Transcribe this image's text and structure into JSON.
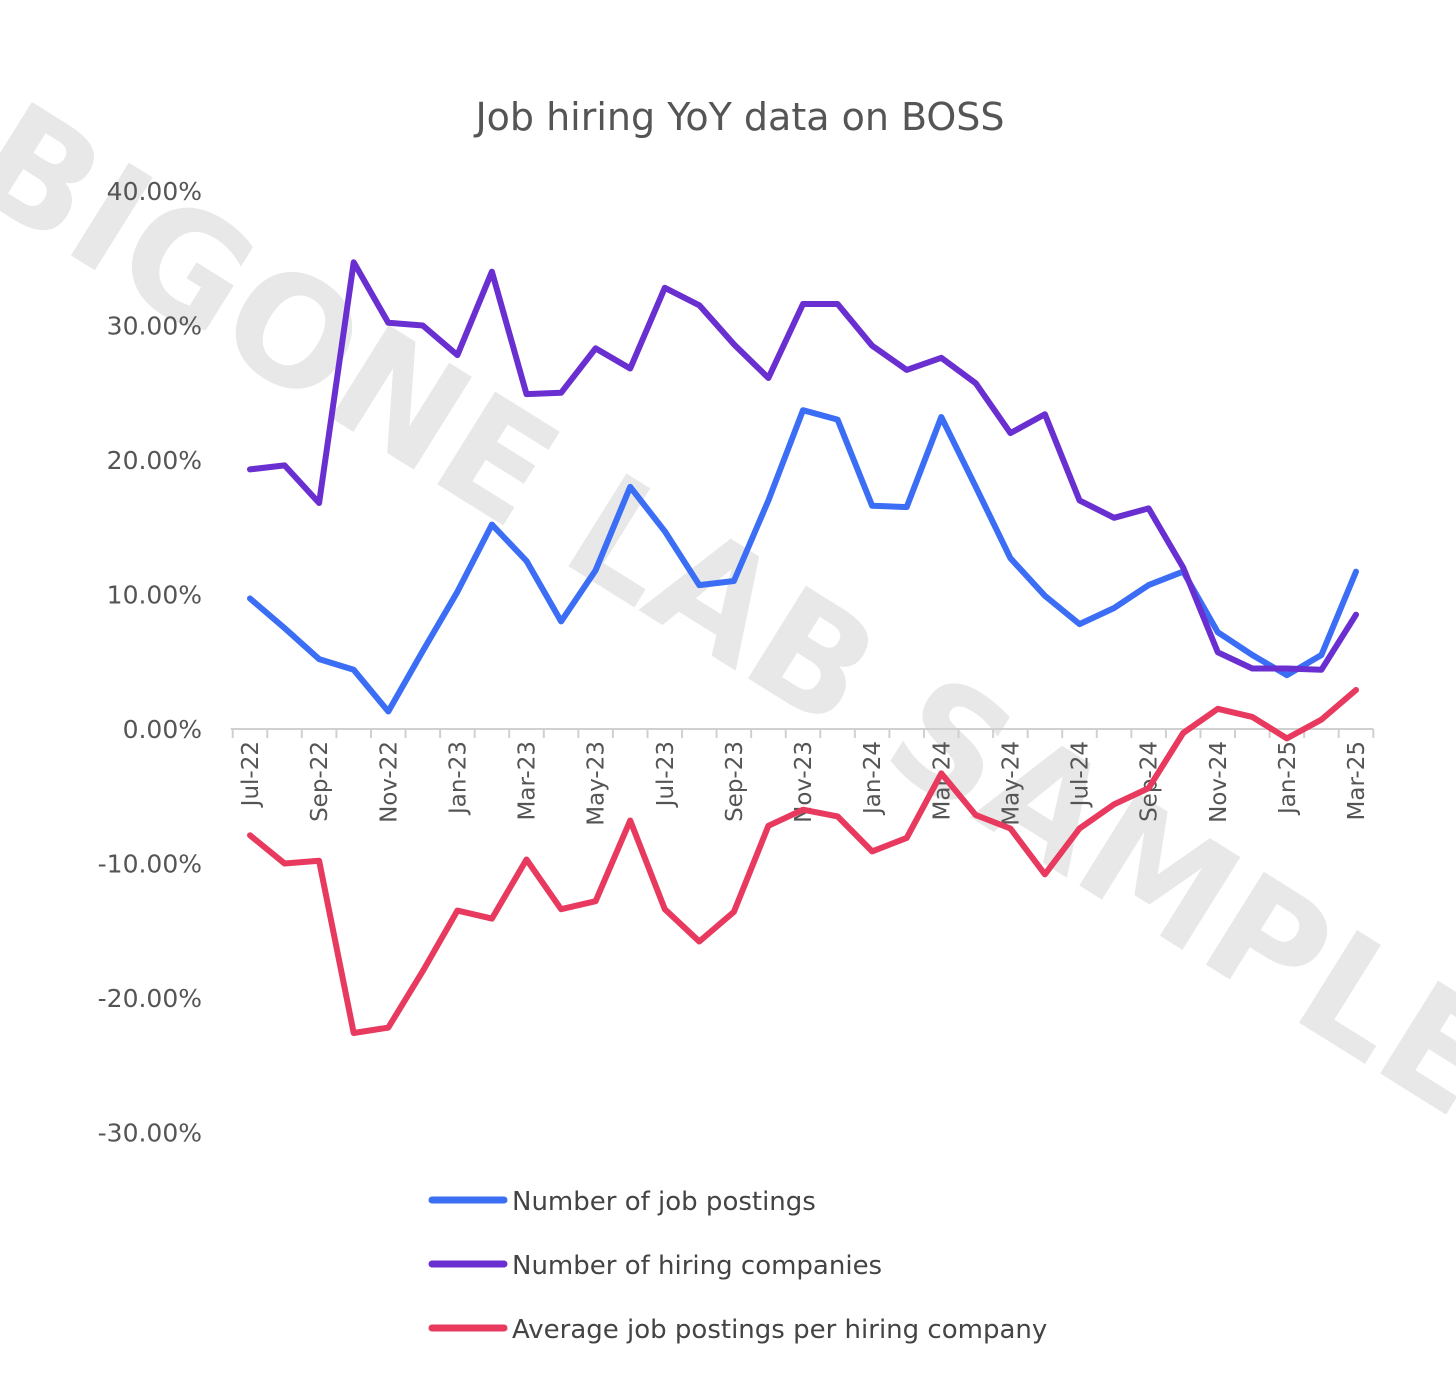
{
  "chart_data": {
    "type": "line",
    "title": "Job hiring YoY data on BOSS",
    "watermark": "BIGONE LAB SAMPLE",
    "xlabel": "",
    "ylabel": "",
    "ylim": [
      -0.3,
      0.4
    ],
    "yticks": [
      "40.00%",
      "30.00%",
      "20.00%",
      "10.00%",
      "0.00%",
      "-10.00%",
      "-20.00%",
      "-30.00%"
    ],
    "x": [
      "Jul-22",
      "Aug-22",
      "Sep-22",
      "Oct-22",
      "Nov-22",
      "Dec-22",
      "Jan-23",
      "Feb-23",
      "Mar-23",
      "Apr-23",
      "May-23",
      "Jun-23",
      "Jul-23",
      "Aug-23",
      "Sep-23",
      "Oct-23",
      "Nov-23",
      "Dec-23",
      "Jan-24",
      "Feb-24",
      "Mar-24",
      "Apr-24",
      "May-24",
      "Jun-24",
      "Jul-24",
      "Aug-24",
      "Sep-24",
      "Oct-24",
      "Nov-24",
      "Dec-24",
      "Jan-25",
      "Feb-25",
      "Mar-25"
    ],
    "xtick_labels": [
      "Jul-22",
      "Sep-22",
      "Nov-22",
      "Jan-23",
      "Mar-23",
      "May-23",
      "Jul-23",
      "Sep-23",
      "Nov-23",
      "Jan-24",
      "Mar-24",
      "May-24",
      "Jul-24",
      "Sep-24",
      "Nov-24",
      "Jan-25",
      "Mar-25"
    ],
    "legend_position": "bottom",
    "grid": false,
    "series": [
      {
        "name": "Number of job postings",
        "color": "#3b6ef5",
        "values": [
          0.097,
          0.075,
          0.052,
          0.044,
          0.013,
          0.058,
          0.102,
          0.152,
          0.125,
          0.08,
          0.118,
          0.18,
          0.147,
          0.107,
          0.11,
          0.17,
          0.237,
          0.23,
          0.166,
          0.165,
          0.232,
          0.18,
          0.127,
          0.099,
          0.078,
          0.09,
          0.107,
          0.117,
          0.072,
          0.055,
          0.04,
          0.055,
          0.117
        ]
      },
      {
        "name": "Number of hiring companies",
        "color": "#6a2fd0",
        "values": [
          0.193,
          0.196,
          0.168,
          0.347,
          0.302,
          0.3,
          0.278,
          0.34,
          0.249,
          0.25,
          0.283,
          0.268,
          0.328,
          0.315,
          0.286,
          0.261,
          0.316,
          0.316,
          0.285,
          0.267,
          0.276,
          0.257,
          0.22,
          0.234,
          0.17,
          0.157,
          0.164,
          0.12,
          0.057,
          0.045,
          0.045,
          0.044,
          0.085
        ]
      },
      {
        "name": "Average job postings per hiring company",
        "color": "#e8395f",
        "values": [
          -0.079,
          -0.1,
          -0.098,
          -0.226,
          -0.222,
          -0.18,
          -0.135,
          -0.141,
          -0.097,
          -0.134,
          -0.128,
          -0.068,
          -0.134,
          -0.158,
          -0.136,
          -0.072,
          -0.06,
          -0.065,
          -0.091,
          -0.081,
          -0.033,
          -0.064,
          -0.074,
          -0.108,
          -0.074,
          -0.056,
          -0.044,
          -0.003,
          0.015,
          0.009,
          -0.007,
          0.007,
          0.029
        ]
      }
    ]
  }
}
